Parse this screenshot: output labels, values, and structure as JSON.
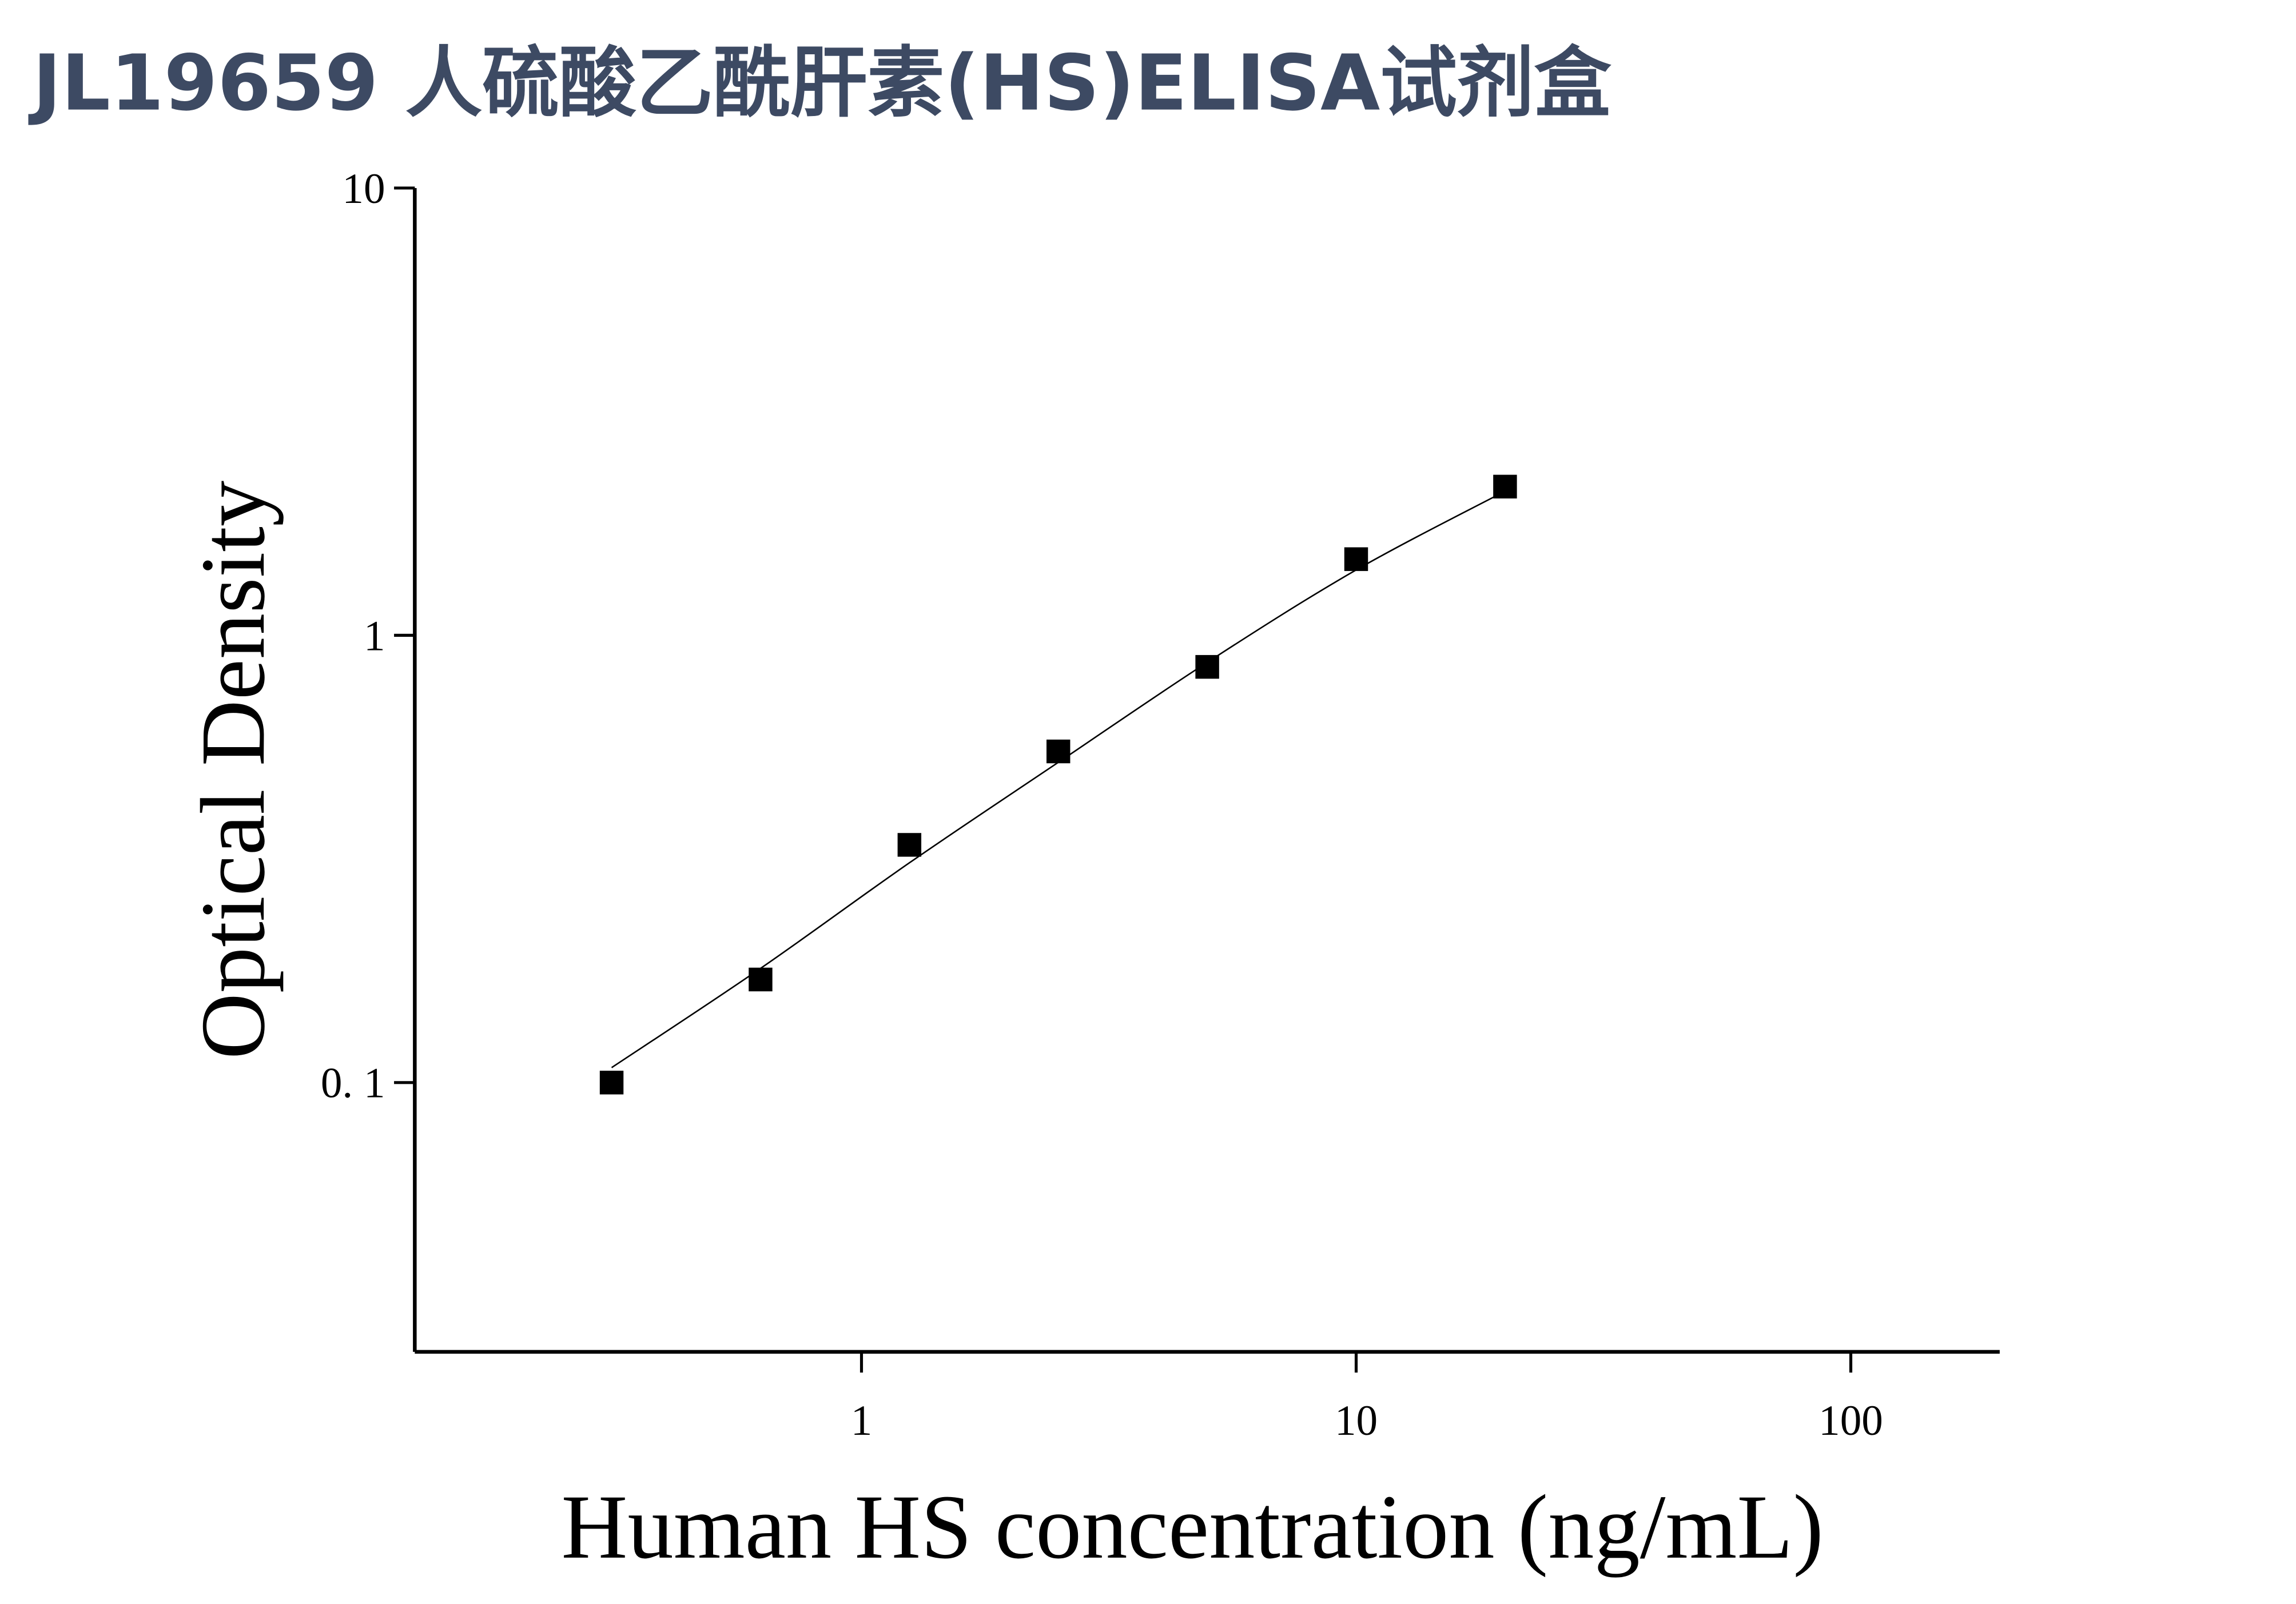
{
  "chart_data": {
    "type": "scatter",
    "title": "JL19659 人硫酸乙酰肝素(HS)ELISA试剂盒",
    "x_label": "Human HS concentration (ng/mL)",
    "y_label": "Optical Density",
    "x": [
      0.3125,
      0.625,
      1.25,
      2.5,
      5,
      10,
      20
    ],
    "values": [
      0.1,
      0.17,
      0.34,
      0.55,
      0.85,
      1.48,
      2.15
    ],
    "color": "#000000",
    "fit_x": [
      0.3125,
      0.625,
      1.25,
      2.5,
      5,
      10,
      20
    ],
    "fit_values": [
      0.108,
      0.18,
      0.31,
      0.52,
      0.87,
      1.4,
      2.1
    ],
    "x_log": true,
    "y_log": true,
    "xlim": [
      0.125,
      200
    ],
    "xticks": [
      1,
      10,
      100
    ],
    "ylim": [
      0.025,
      10
    ],
    "yticks": [
      {
        "value": 0.1,
        "label": "0. 1"
      },
      1,
      10
    ]
  }
}
